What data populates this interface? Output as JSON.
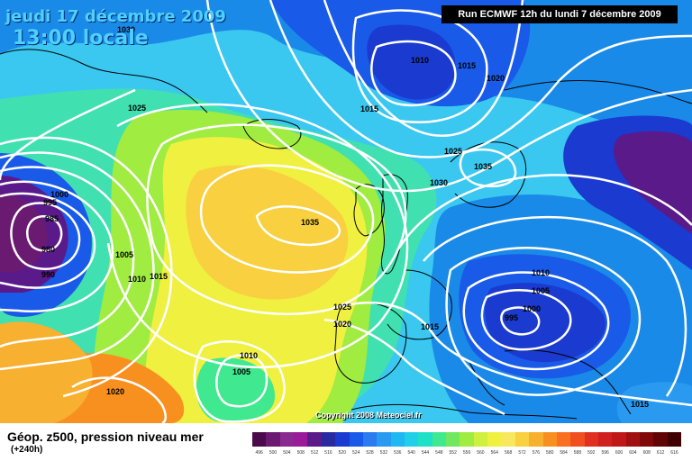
{
  "header": {
    "date": "jeudi 17 décembre 2009",
    "time": "13:00 locale",
    "run": "Run ECMWF 12h du lundi 7 décembre 2009"
  },
  "map": {
    "copyright": "Copyright 2008 Meteociel.fr",
    "isobar_labels": [
      "1030",
      "1010",
      "1015",
      "1020",
      "1025",
      "1015",
      "1025",
      "1030",
      "1035",
      "1000",
      "995",
      "985",
      "980",
      "990",
      "1005",
      "1010",
      "1015",
      "1035",
      "1025",
      "1020",
      "1015",
      "1010",
      "1005",
      "1000",
      "995",
      "1010",
      "1005",
      "1020",
      "1015"
    ]
  },
  "legend": {
    "title": "Géop. z500, pression niveau mer",
    "subtitle": "(+240h)",
    "scale_values": [
      "496",
      "500",
      "504",
      "508",
      "512",
      "516",
      "520",
      "524",
      "528",
      "532",
      "536",
      "540",
      "544",
      "548",
      "552",
      "556",
      "560",
      "564",
      "568",
      "572",
      "576",
      "580",
      "584",
      "588",
      "592",
      "596",
      "600",
      "604",
      "608",
      "612",
      "616"
    ],
    "scale_colors": [
      "#4b0a4b",
      "#6a1a70",
      "#8a2a90",
      "#9a1a9a",
      "#5a1a8a",
      "#2a2aa0",
      "#1a3ad0",
      "#1a5ae8",
      "#2a7af0",
      "#2a9af0",
      "#20b8f0",
      "#20d0e8",
      "#20e0c8",
      "#40e890",
      "#70e860",
      "#a0ec40",
      "#d0f040",
      "#f0f040",
      "#f8e860",
      "#f8d040",
      "#f8b030",
      "#f89020",
      "#f87020",
      "#f05020",
      "#e03020",
      "#d02020",
      "#c01818",
      "#a01010",
      "#800808",
      "#600404",
      "#400000"
    ]
  }
}
